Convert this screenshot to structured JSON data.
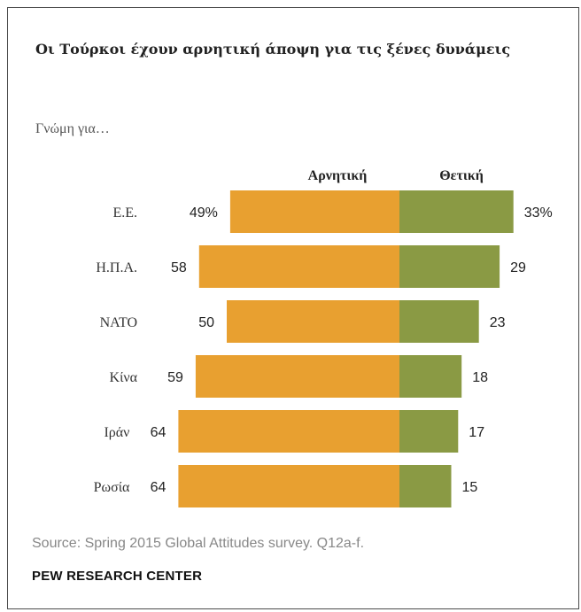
{
  "title": "Οι Τούρκοι έχουν αρνητική άποψη για τις ξένες δυνάμεις",
  "subtitle": "Γνώμη για…",
  "footer": {
    "source": "Source: Spring 2015 Global Attitudes survey. Q12a-f.",
    "brand": "PEW RESEARCH CENTER"
  },
  "colors": {
    "negative": "#e8a030",
    "positive": "#8a9a44"
  },
  "chart_data": {
    "type": "bar",
    "orientation": "horizontal-diverging",
    "categories": [
      "Ε.Ε.",
      "Η.Π.Α.",
      "ΝΑΤΟ",
      "Κίνα",
      "Ιράν",
      "Ρωσία"
    ],
    "series": [
      {
        "name": "Αρνητική",
        "values": [
          49,
          58,
          50,
          59,
          64,
          64
        ],
        "labels": [
          "49%",
          "58",
          "50",
          "59",
          "64",
          "64"
        ]
      },
      {
        "name": "Θετική",
        "values": [
          33,
          29,
          23,
          18,
          17,
          15
        ],
        "labels": [
          "33%",
          "29",
          "23",
          "18",
          "17",
          "15"
        ]
      }
    ],
    "title": "Οι Τούρκοι έχουν αρνητική άποψη για τις ξένες δυνάμεις",
    "legend": "top"
  }
}
